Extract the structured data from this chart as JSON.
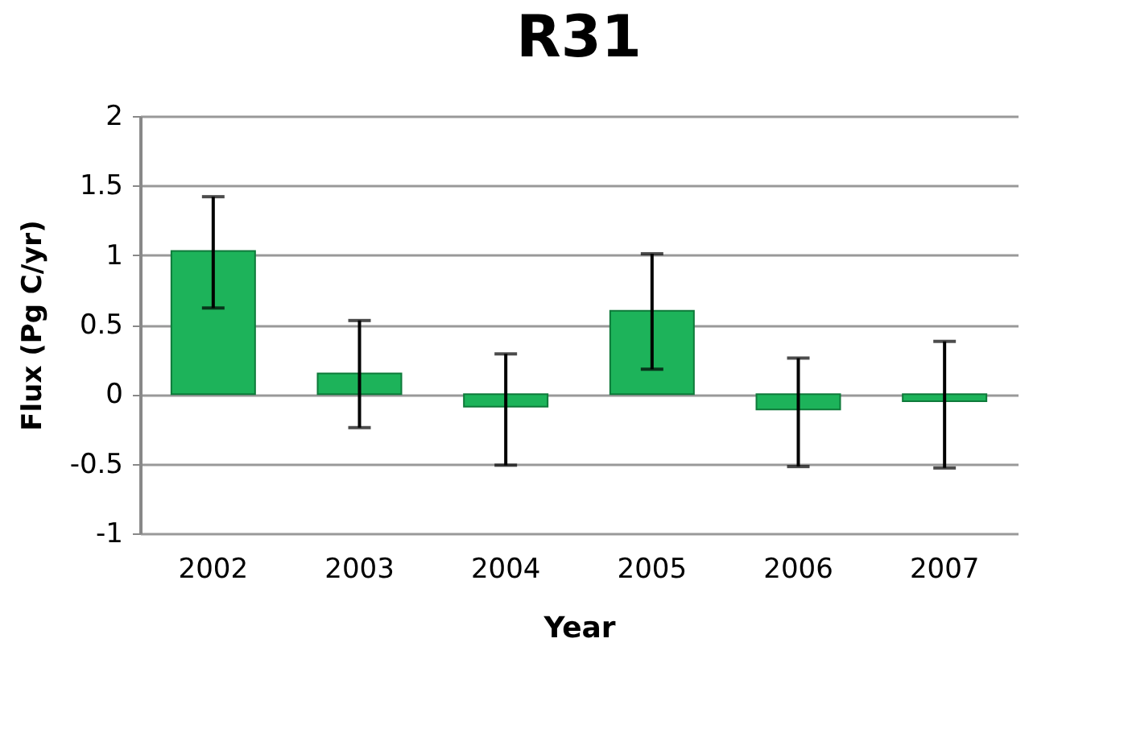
{
  "chart_data": {
    "type": "bar",
    "title": "R31",
    "xlabel": "Year",
    "ylabel": "Flux (Pg C/yr)",
    "categories": [
      "2002",
      "2003",
      "2004",
      "2005",
      "2006",
      "2007"
    ],
    "values": [
      1.03,
      0.15,
      -0.09,
      0.6,
      -0.11,
      -0.05
    ],
    "errors": [
      [
        0.62,
        1.42
      ],
      [
        -0.24,
        0.53
      ],
      [
        -0.51,
        0.29
      ],
      [
        0.18,
        1.01
      ],
      [
        -0.52,
        0.26
      ],
      [
        -0.53,
        0.38
      ]
    ],
    "color": "#1db35a",
    "ylim": [
      -1,
      2
    ],
    "yticks": [
      -1,
      -0.5,
      0,
      0.5,
      1,
      1.5,
      2
    ],
    "grid": "y"
  }
}
